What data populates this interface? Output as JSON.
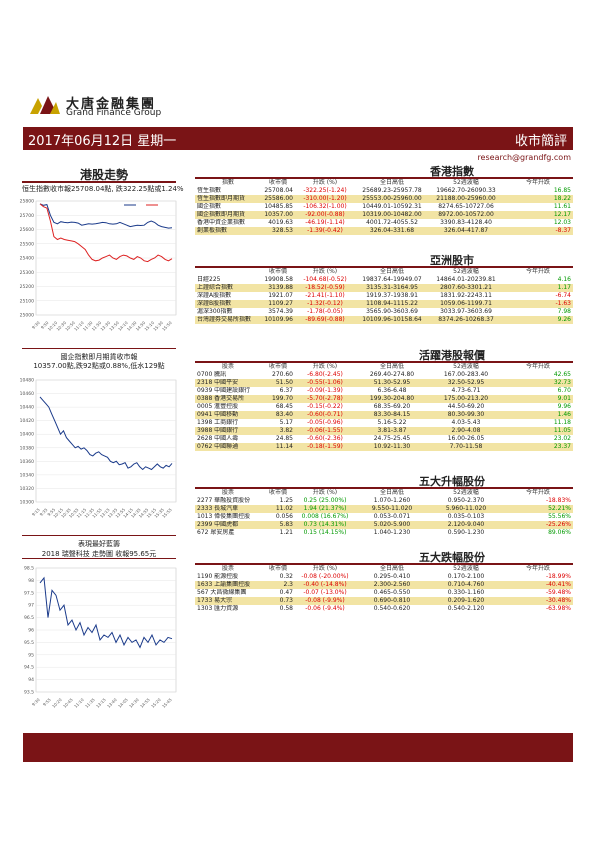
{
  "header": {
    "brand_cn": "大唐金融集團",
    "brand_en": "Grand Finance Group",
    "date": "2017年06月12日 星期一",
    "report_title": "收市簡評",
    "email": "research@grandfg.com",
    "brand_color": "#7a1416"
  },
  "left": {
    "hk_title": "港股走勢",
    "hk_caption": "恒生指數收市報25708.04點, 跌322.25點或1.24%",
    "hsi_chart_data": {
      "type": "line",
      "y_ticks": [
        "25800",
        "25700",
        "25600",
        "25500",
        "25400",
        "25300",
        "25200",
        "25100",
        "25000"
      ],
      "x_ticks": [
        "9:30",
        "9:50",
        "10:10",
        "10:30",
        "10:50",
        "11:10",
        "11:30",
        "11:50",
        "13:30",
        "13:50",
        "14:10",
        "14:30",
        "14:50",
        "15:10",
        "15:30",
        "15:50"
      ],
      "ylim": [
        25000,
        25800
      ],
      "series": [
        {
          "color": "#1a3a8a",
          "values": [
            25780,
            25770,
            25775,
            25700,
            25650,
            25640,
            25655,
            25650,
            25648,
            25652,
            25650,
            25645,
            25630,
            25635,
            25640,
            25638,
            25640,
            25645,
            25650,
            25648,
            25640,
            25638,
            25640,
            25650,
            25640,
            25630,
            25620,
            25625,
            25630,
            25628,
            25630,
            25650,
            25660,
            25650,
            25630,
            25620,
            25615,
            25610,
            25612
          ]
        },
        {
          "color": "#dd2222",
          "values": [
            25780,
            25760,
            25750,
            25660,
            25550,
            25530,
            25540,
            25530,
            25525,
            25520,
            25515,
            25500,
            25480,
            25460,
            25420,
            25390,
            25380,
            25385,
            25400,
            25410,
            25420,
            25400,
            25390,
            25410,
            25420,
            25415,
            25400,
            25390,
            25410,
            25400,
            25380,
            25375,
            25390,
            25400,
            25420,
            25410,
            25390,
            25380,
            25395
          ]
        }
      ]
    },
    "hscei_caption_1": "國企指數即月期貨收市報",
    "hscei_caption_2": "10357.00點,跌92點或0.88%,低水129點",
    "hscei_chart_data": {
      "type": "line",
      "y_ticks": [
        "10480",
        "10460",
        "10440",
        "10420",
        "10400",
        "10380",
        "10360",
        "10340",
        "10320",
        "10300"
      ],
      "x_ticks": [
        "9:15",
        "9:35",
        "9:55",
        "10:15",
        "10:35",
        "10:55",
        "11:15",
        "11:35",
        "11:55",
        "13:15",
        "13:35",
        "13:55",
        "14:15",
        "14:35",
        "14:55",
        "15:15",
        "15:35",
        "15:55"
      ],
      "ylim": [
        10300,
        10480
      ],
      "series": [
        {
          "color": "#1a3a8a",
          "values": [
            10455,
            10450,
            10445,
            10440,
            10430,
            10420,
            10410,
            10400,
            10405,
            10395,
            10390,
            10385,
            10380,
            10382,
            10378,
            10380,
            10376,
            10370,
            10368,
            10372,
            10374,
            10370,
            10368,
            10366,
            10360,
            10358,
            10360,
            10355,
            10356,
            10358,
            10350,
            10352,
            10356,
            10358,
            10352,
            10348,
            10352,
            10350,
            10348,
            10352,
            10356,
            10352,
            10350,
            10354,
            10352,
            10357
          ]
        }
      ]
    },
    "stock_title": "表現最好藍籌",
    "stock_caption": "2018 瑞聲科技 走勢圖  收報95.65元",
    "stock_chart_data": {
      "type": "line",
      "y_ticks": [
        "98.5",
        "98",
        "97.5",
        "97",
        "96.5",
        "96",
        "95.5",
        "95",
        "94.5",
        "94",
        "93.5"
      ],
      "x_ticks": [
        "9:30",
        "9:55",
        "10:20",
        "10:45",
        "11:10",
        "11:35",
        "13:15",
        "13:40",
        "14:05",
        "14:30",
        "14:55",
        "15:20",
        "15:45"
      ],
      "ylim": [
        93.5,
        98.5
      ],
      "series": [
        {
          "color": "#1a3a8a",
          "values": [
            97.9,
            98.1,
            96.5,
            97.6,
            97.4,
            96.8,
            97.0,
            96.2,
            96.4,
            96.0,
            96.3,
            95.8,
            96.1,
            95.9,
            96.2,
            95.6,
            95.8,
            95.7,
            95.9,
            95.5,
            95.8,
            95.4,
            95.7,
            95.5,
            95.6,
            95.3,
            95.7,
            95.5,
            95.8,
            95.4,
            95.6,
            95.5,
            95.7,
            95.65
          ]
        }
      ]
    }
  },
  "hk_index": {
    "title": "香港指數",
    "headers": [
      "指數",
      "收市價",
      "升跌 (%)",
      "全日高低",
      "52週波幅",
      "今年升跌"
    ],
    "rows": [
      {
        "name": "恆生指數",
        "close": "25708.04",
        "chg": "-322.25(-1.24)",
        "hl": "25689.23-25957.78",
        "wk52": "19662.70-26090.33",
        "ytd": "16.85",
        "hl_row": false,
        "chg_color": "neg",
        "ytd_color": "pos"
      },
      {
        "name": "恆生指數即月期貨",
        "close": "25586.00",
        "chg": "-310.00(-1.20)",
        "hl": "25553.00-25960.00",
        "wk52": "21188.00-25960.00",
        "ytd": "18.22",
        "hl_row": true,
        "chg_color": "neg",
        "ytd_color": "pos"
      },
      {
        "name": "國企指數",
        "close": "10485.85",
        "chg": "-106.32(-1.00)",
        "hl": "10449.01-10592.31",
        "wk52": "8274.65-10727.06",
        "ytd": "11.61",
        "hl_row": false,
        "chg_color": "neg",
        "ytd_color": "pos"
      },
      {
        "name": "國企指數即月期貨",
        "close": "10357.00",
        "chg": "-92.00(-0.88)",
        "hl": "10319.00-10482.00",
        "wk52": "8972.00-10572.00",
        "ytd": "12.17",
        "hl_row": true,
        "chg_color": "neg",
        "ytd_color": "pos"
      },
      {
        "name": "香港中資企業指數",
        "close": "4019.63",
        "chg": "-46.19(-1.14)",
        "hl": "4001.72-4055.52",
        "wk52": "3390.83-4128.40",
        "ytd": "12.03",
        "hl_row": false,
        "chg_color": "neg",
        "ytd_color": "pos"
      },
      {
        "name": "創業板指數",
        "close": "328.53",
        "chg": "-1.39(-0.42)",
        "hl": "326.04-331.68",
        "wk52": "326.04-417.87",
        "ytd": "-8.37",
        "hl_row": true,
        "chg_color": "neg",
        "ytd_color": "neg"
      }
    ]
  },
  "asia_index": {
    "title": "亞洲股市",
    "headers": [
      "",
      "收市價",
      "升跌 (%)",
      "全日高低",
      "52週波幅",
      "今年升跌"
    ],
    "rows": [
      {
        "name": "日經225",
        "close": "19908.58",
        "chg": "-104.68(-0.52)",
        "hl": "19837.64-19949.07",
        "wk52": "14864.01-20239.81",
        "ytd": "4.16",
        "hl_row": false,
        "chg_color": "neg",
        "ytd_color": "pos"
      },
      {
        "name": "上證綜合指數",
        "close": "3139.88",
        "chg": "-18.52(-0.59)",
        "hl": "3135.31-3164.95",
        "wk52": "2807.60-3301.21",
        "ytd": "1.17",
        "hl_row": true,
        "chg_color": "neg",
        "ytd_color": "pos"
      },
      {
        "name": "深證A股指數",
        "close": "1921.07",
        "chg": "-21.41(-1.10)",
        "hl": "1919.37-1938.91",
        "wk52": "1831.92-2243.11",
        "ytd": "-6.74",
        "hl_row": false,
        "chg_color": "neg",
        "ytd_color": "neg"
      },
      {
        "name": "深證B股指數",
        "close": "1109.27",
        "chg": "-1.32(-0.12)",
        "hl": "1108.94-1115.22",
        "wk52": "1059.06-1199.71",
        "ytd": "-1.63",
        "hl_row": true,
        "chg_color": "neg",
        "ytd_color": "neg"
      },
      {
        "name": "滬深300指數",
        "close": "3574.39",
        "chg": "-1.78(-0.05)",
        "hl": "3565.90-3603.69",
        "wk52": "3033.97-3603.69",
        "ytd": "7.98",
        "hl_row": false,
        "chg_color": "neg",
        "ytd_color": "pos"
      },
      {
        "name": "台灣證券交易所指數",
        "close": "10109.96",
        "chg": "-89.69(-0.88)",
        "hl": "10109.96-10158.64",
        "wk52": "8374.26-10268.37",
        "ytd": "9.26",
        "hl_row": true,
        "chg_color": "neg",
        "ytd_color": "pos"
      }
    ]
  },
  "active_stocks": {
    "title": "活躍港股報價",
    "headers": [
      "股票",
      "收市價",
      "升跌 (%)",
      "全日高低",
      "52週波幅",
      "今年升跌"
    ],
    "rows": [
      {
        "name": "0700 騰訊",
        "close": "270.60",
        "chg": "-6.80(-2.45)",
        "hl": "269.40-274.80",
        "wk52": "167.00-283.40",
        "ytd": "42.65",
        "hl_row": false,
        "chg_color": "neg",
        "ytd_color": "pos"
      },
      {
        "name": "2318 中國平安",
        "close": "51.50",
        "chg": "-0.55(-1.06)",
        "hl": "51.30-52.95",
        "wk52": "32.50-52.95",
        "ytd": "32.73",
        "hl_row": true,
        "chg_color": "neg",
        "ytd_color": "pos"
      },
      {
        "name": "0939 中國建設銀行",
        "close": "6.37",
        "chg": "-0.09(-1.39)",
        "hl": "6.36-6.48",
        "wk52": "4.73-6.71",
        "ytd": "6.70",
        "hl_row": false,
        "chg_color": "neg",
        "ytd_color": "pos"
      },
      {
        "name": "0388 香港交易所",
        "close": "199.70",
        "chg": "-5.70(-2.78)",
        "hl": "199.30-204.80",
        "wk52": "175.00-213.20",
        "ytd": "9.01",
        "hl_row": true,
        "chg_color": "neg",
        "ytd_color": "pos"
      },
      {
        "name": "0005 滙豐控股",
        "close": "68.45",
        "chg": "-0.15(-0.22)",
        "hl": "68.35-69.20",
        "wk52": "44.50-69.20",
        "ytd": "9.96",
        "hl_row": false,
        "chg_color": "neg",
        "ytd_color": "pos"
      },
      {
        "name": "0941 中國移動",
        "close": "83.40",
        "chg": "-0.60(-0.71)",
        "hl": "83.30-84.15",
        "wk52": "80.30-99.30",
        "ytd": "1.46",
        "hl_row": true,
        "chg_color": "neg",
        "ytd_color": "pos"
      },
      {
        "name": "1398 工商銀行",
        "close": "5.17",
        "chg": "-0.05(-0.96)",
        "hl": "5.16-5.22",
        "wk52": "4.03-5.43",
        "ytd": "11.18",
        "hl_row": false,
        "chg_color": "neg",
        "ytd_color": "pos"
      },
      {
        "name": "3988 中國銀行",
        "close": "3.82",
        "chg": "-0.06(-1.55)",
        "hl": "3.81-3.87",
        "wk52": "2.90-4.08",
        "ytd": "11.05",
        "hl_row": true,
        "chg_color": "neg",
        "ytd_color": "pos"
      },
      {
        "name": "2628 中國人壽",
        "close": "24.85",
        "chg": "-0.60(-2.36)",
        "hl": "24.75-25.45",
        "wk52": "16.00-26.05",
        "ytd": "23.02",
        "hl_row": false,
        "chg_color": "neg",
        "ytd_color": "pos"
      },
      {
        "name": "0762 中國聯通",
        "close": "11.14",
        "chg": "-0.18(-1.59)",
        "hl": "10.92-11.30",
        "wk52": "7.70-11.58",
        "ytd": "23.37",
        "hl_row": true,
        "chg_color": "neg",
        "ytd_color": "pos"
      }
    ]
  },
  "top_gainers": {
    "title": "五大升幅股份",
    "headers": [
      "股票",
      "收市價",
      "升跌 (%)",
      "全日高低",
      "52週波幅",
      "今年升跌"
    ],
    "rows": [
      {
        "name": "2277 華融投資股份",
        "close": "1.25",
        "chg": "0.25 (25.00%)",
        "hl": "1.070-1.260",
        "wk52": "0.950-2.370",
        "ytd": "-18.83%",
        "hl_row": false,
        "chg_color": "pos",
        "ytd_color": "neg"
      },
      {
        "name": "2333 長城汽車",
        "close": "11.02",
        "chg": "1.94 (21.37%)",
        "hl": "9.550-11.020",
        "wk52": "5.960-11.020",
        "ytd": "52.21%",
        "hl_row": true,
        "chg_color": "pos",
        "ytd_color": "pos"
      },
      {
        "name": "1013 偉俊集團控股",
        "close": "0.056",
        "chg": "0.008 (16.67%)",
        "hl": "0.053-0.071",
        "wk52": "0.035-0.103",
        "ytd": "55.56%",
        "hl_row": false,
        "chg_color": "pos",
        "ytd_color": "pos"
      },
      {
        "name": "2399 中國虎都",
        "close": "5.83",
        "chg": "0.73 (14.31%)",
        "hl": "5.020-5.900",
        "wk52": "2.120-9.040",
        "ytd": "-25.26%",
        "hl_row": true,
        "chg_color": "pos",
        "ytd_color": "neg"
      },
      {
        "name": "672 眾安房產",
        "close": "1.21",
        "chg": "0.15 (14.15%)",
        "hl": "1.040-1.230",
        "wk52": "0.590-1.230",
        "ytd": "89.06%",
        "hl_row": false,
        "chg_color": "pos",
        "ytd_color": "pos"
      }
    ]
  },
  "top_losers": {
    "title": "五大跌幅股份",
    "headers": [
      "股票",
      "收市價",
      "升跌 (%)",
      "全日高低",
      "52週波幅",
      "今年升跌"
    ],
    "rows": [
      {
        "name": "1190 能源控股",
        "close": "0.32",
        "chg": "-0.08 (-20.00%)",
        "hl": "0.295-0.410",
        "wk52": "0.170-2.100",
        "ytd": "-18.99%",
        "hl_row": false,
        "chg_color": "neg",
        "ytd_color": "neg"
      },
      {
        "name": "1633 上諭集團控股",
        "close": "2.3",
        "chg": "-0.40 (-14.8%)",
        "hl": "2.300-2.560",
        "wk52": "0.710-4.760",
        "ytd": "-40.41%",
        "hl_row": true,
        "chg_color": "neg",
        "ytd_color": "neg"
      },
      {
        "name": "567 大昌微線集團",
        "close": "0.47",
        "chg": "-0.07 (-13.0%)",
        "hl": "0.465-0.550",
        "wk52": "0.330-1.160",
        "ytd": "-59.48%",
        "hl_row": false,
        "chg_color": "neg",
        "ytd_color": "neg"
      },
      {
        "name": "1733 易大宗",
        "close": "0.73",
        "chg": "-0.08 (-9.9%)",
        "hl": "0.690-0.810",
        "wk52": "0.209-1.620",
        "ytd": "-30.48%",
        "hl_row": true,
        "chg_color": "neg",
        "ytd_color": "neg"
      },
      {
        "name": "1303 匯力資源",
        "close": "0.58",
        "chg": "-0.06 (-9.4%)",
        "hl": "0.540-0.620",
        "wk52": "0.540-2.120",
        "ytd": "-63.98%",
        "hl_row": false,
        "chg_color": "neg",
        "ytd_color": "neg"
      }
    ]
  }
}
